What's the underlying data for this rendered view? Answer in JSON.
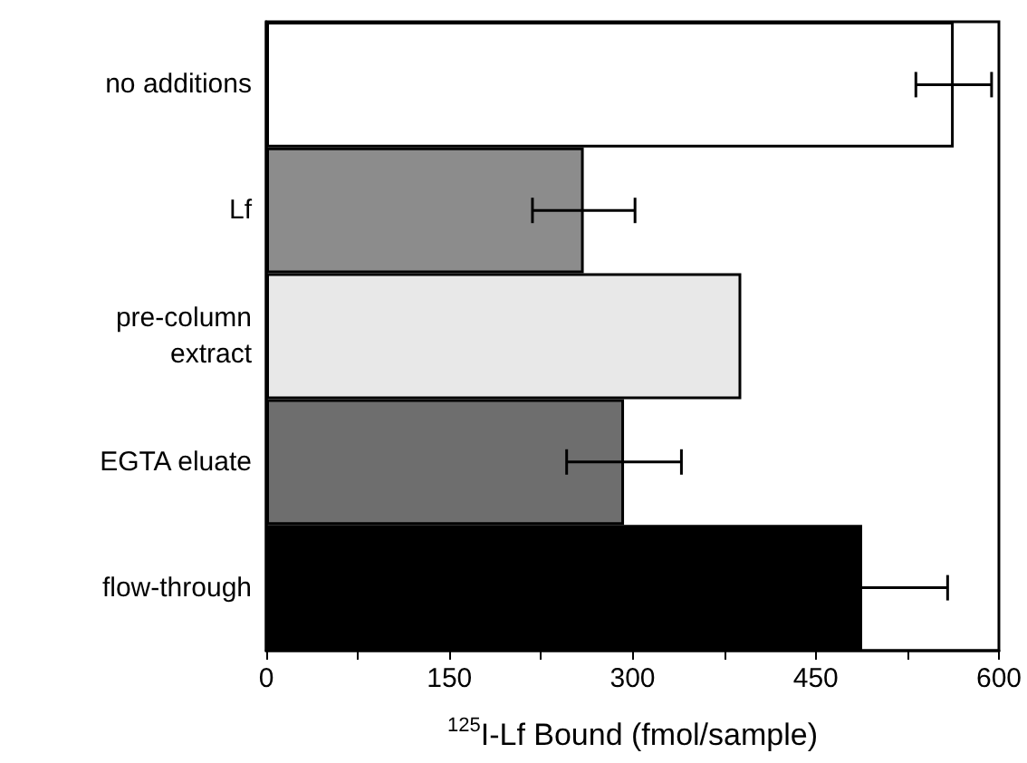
{
  "chart_data": {
    "type": "bar",
    "orientation": "horizontal",
    "categories": [
      "no additions",
      "Lf",
      "pre-column\nextract",
      "EGTA eluate",
      "flow-through"
    ],
    "values": [
      563,
      260,
      389,
      293,
      488
    ],
    "colors": [
      "#ffffff",
      "#8c8c8c",
      "#e8e8e8",
      "#6e6e6e",
      "#000000"
    ],
    "errors": [
      31,
      42,
      null,
      47,
      70
    ],
    "xlabel": "$^{125}$I-Lf Bound (fmol/sample)",
    "xlim": [
      0,
      600
    ],
    "xticks": [
      0,
      {
        "value": 75,
        "label": null
      },
      150,
      {
        "value": 225,
        "label": null
      },
      300,
      {
        "value": 375,
        "label": null
      },
      450,
      {
        "value": 525,
        "label": null
      },
      600
    ],
    "grid": false
  }
}
